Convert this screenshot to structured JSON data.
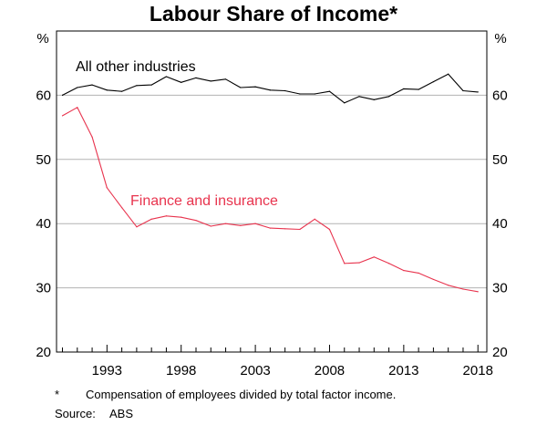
{
  "chart_data": {
    "type": "line",
    "title": "Labour Share of Income*",
    "y_unit_left": "%",
    "y_unit_right": "%",
    "ylim": [
      20,
      70
    ],
    "yticks": [
      20,
      30,
      40,
      50,
      60
    ],
    "xlim": [
      1989.6,
      2018.6
    ],
    "xticks": [
      1993,
      1998,
      2003,
      2008,
      2013,
      2018
    ],
    "grid": "horizontal",
    "series": [
      {
        "name": "All other industries",
        "color": "#000000",
        "x": [
          1990,
          1991,
          1992,
          1993,
          1994,
          1995,
          1996,
          1997,
          1998,
          1999,
          2000,
          2001,
          2002,
          2003,
          2004,
          2005,
          2006,
          2007,
          2008,
          2009,
          2010,
          2011,
          2012,
          2013,
          2014,
          2015,
          2016,
          2017,
          2018
        ],
        "values": [
          60.0,
          61.2,
          61.6,
          60.8,
          60.6,
          61.5,
          61.6,
          62.9,
          62.0,
          62.7,
          62.2,
          62.5,
          61.2,
          61.3,
          60.8,
          60.7,
          60.2,
          60.2,
          60.6,
          58.8,
          59.8,
          59.3,
          59.8,
          61.0,
          60.9,
          62.1,
          63.3,
          60.7,
          60.5
        ]
      },
      {
        "name": "Finance and insurance",
        "color": "#e8344e",
        "x": [
          1990,
          1991,
          1992,
          1993,
          1994,
          1995,
          1996,
          1997,
          1998,
          1999,
          2000,
          2001,
          2002,
          2003,
          2004,
          2005,
          2006,
          2007,
          2008,
          2009,
          2010,
          2011,
          2012,
          2013,
          2014,
          2015,
          2016,
          2017,
          2018
        ],
        "values": [
          56.8,
          58.1,
          53.5,
          45.6,
          42.5,
          39.5,
          40.7,
          41.2,
          41.0,
          40.5,
          39.6,
          40.0,
          39.7,
          40.0,
          39.3,
          39.2,
          39.1,
          40.7,
          39.1,
          33.8,
          33.9,
          34.8,
          33.8,
          32.7,
          32.3,
          31.3,
          30.4,
          29.8,
          29.4
        ]
      }
    ],
    "footnote_marker": "*",
    "footnote": "Compensation of employees divided by total factor income.",
    "source_label": "Source:",
    "source": "ABS"
  }
}
